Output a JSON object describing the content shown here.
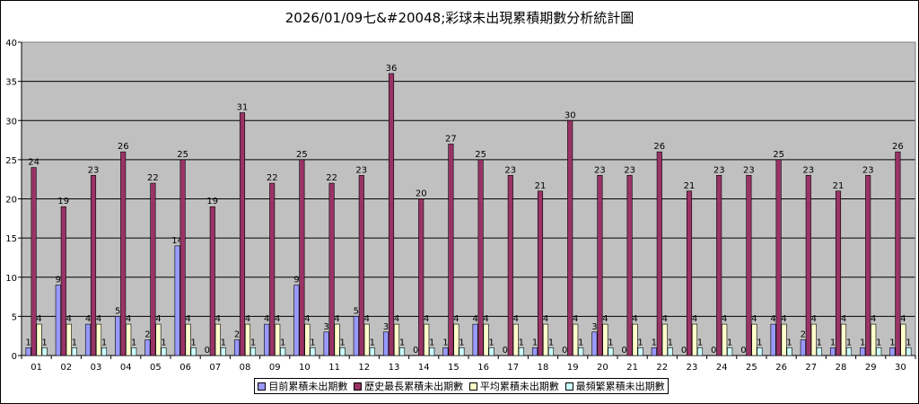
{
  "chart_data": {
    "type": "bar",
    "title": "2026/01/09七&#20048;彩球未出現累積期數分析統計圖",
    "categories": [
      "01",
      "02",
      "03",
      "04",
      "05",
      "06",
      "07",
      "08",
      "09",
      "10",
      "11",
      "12",
      "13",
      "14",
      "15",
      "16",
      "17",
      "18",
      "19",
      "20",
      "21",
      "22",
      "23",
      "24",
      "25",
      "26",
      "27",
      "28",
      "29",
      "30"
    ],
    "ylim": [
      0,
      40
    ],
    "yticks": [
      0,
      5,
      10,
      15,
      20,
      25,
      30,
      35,
      40
    ],
    "grid": true,
    "legend_position": "bottom",
    "series": [
      {
        "name": "目前累積未出期數",
        "color": "#9999FF",
        "values": [
          1,
          9,
          4,
          5,
          2,
          14,
          0,
          2,
          4,
          9,
          3,
          5,
          3,
          0,
          1,
          4,
          0,
          1,
          0,
          3,
          0,
          1,
          0,
          0,
          0,
          4,
          2,
          1,
          1,
          1
        ]
      },
      {
        "name": "歷史最長累積未出期數",
        "color": "#993366",
        "values": [
          24,
          19,
          23,
          26,
          22,
          25,
          19,
          31,
          22,
          25,
          22,
          23,
          36,
          20,
          27,
          25,
          23,
          21,
          30,
          23,
          23,
          26,
          21,
          23,
          23,
          25,
          23,
          21,
          23,
          26
        ]
      },
      {
        "name": "平均累積未出期數",
        "color": "#FFFFCC",
        "values": [
          4,
          4,
          4,
          4,
          4,
          4,
          4,
          4,
          4,
          4,
          4,
          4,
          4,
          4,
          4,
          4,
          4,
          4,
          4,
          4,
          4,
          4,
          4,
          4,
          4,
          4,
          4,
          4,
          4,
          4
        ]
      },
      {
        "name": "最頻繁累積未出期數",
        "color": "#CCFFFF",
        "values": [
          1,
          1,
          1,
          1,
          1,
          1,
          1,
          1,
          1,
          1,
          1,
          1,
          1,
          1,
          1,
          1,
          1,
          1,
          1,
          1,
          1,
          1,
          1,
          1,
          1,
          1,
          1,
          1,
          1,
          1
        ]
      }
    ]
  }
}
